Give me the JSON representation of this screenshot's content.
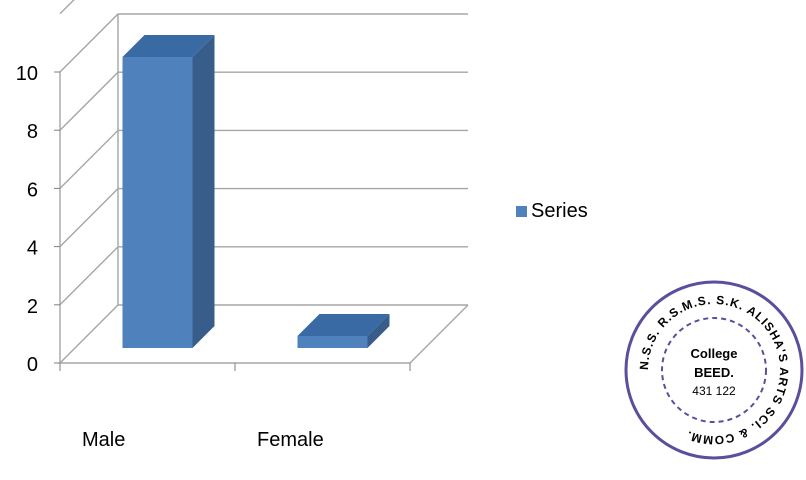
{
  "chart_data": {
    "type": "bar",
    "title": "",
    "xlabel": "",
    "ylabel": "",
    "categories": [
      "Male",
      "Female"
    ],
    "series": [
      {
        "name": "Series",
        "values": [
          10,
          0.4
        ]
      }
    ],
    "yticks": [
      "0",
      "2",
      "4",
      "6",
      "8",
      "10"
    ],
    "ylim": [
      0,
      10
    ],
    "grid": true,
    "three_d": true,
    "legend": "right",
    "colors": {
      "bar_front": "#4f81bd",
      "bar_side": "#385d8a",
      "bar_top": "#3a6aa3",
      "grid": "#a6a6a6"
    }
  },
  "stamp": {
    "ring_text": "N.S.S. R.S.M.S. S.K. ALISHA'S ARTS SCI. & COMM.",
    "line1": "College",
    "line2": "BEED.",
    "line3": "431 122",
    "color": "#5a4f9c"
  }
}
